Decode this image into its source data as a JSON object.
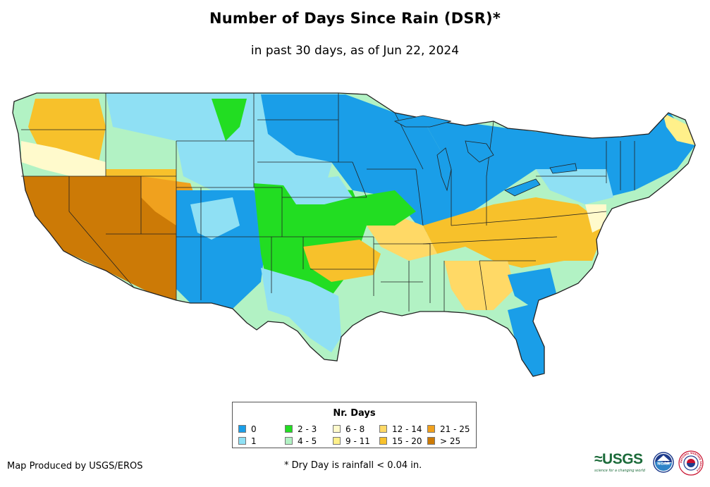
{
  "title": "Number of Days Since Rain (DSR)*",
  "subtitle": "in past 30 days, as of Jun 22, 2024",
  "legend": {
    "title": "Nr. Days",
    "items": [
      {
        "label": "0",
        "color": "#1a9ee8"
      },
      {
        "label": "1",
        "color": "#8fe0f4"
      },
      {
        "label": "2 - 3",
        "color": "#22dd22"
      },
      {
        "label": "4 - 5",
        "color": "#b2f2c4"
      },
      {
        "label": "6 - 8",
        "color": "#fffacc"
      },
      {
        "label": "9 - 11",
        "color": "#fff08a"
      },
      {
        "label": "12 - 14",
        "color": "#ffd966"
      },
      {
        "label": "15 - 20",
        "color": "#f7c12b"
      },
      {
        "label": "21 - 25",
        "color": "#f0a11e"
      },
      {
        "label": "> 25",
        "color": "#cc7a06"
      }
    ]
  },
  "footer": {
    "produced_by": "Map Produced by USGS/EROS",
    "note": "* Dry Day is rainfall < 0.04 in."
  },
  "logos": {
    "usgs_text": "≈USGS",
    "usgs_tagline": "science for a changing world",
    "noaa_text": "NOAA",
    "nws_text": "NATIONAL WEATHER SERVICE"
  }
}
